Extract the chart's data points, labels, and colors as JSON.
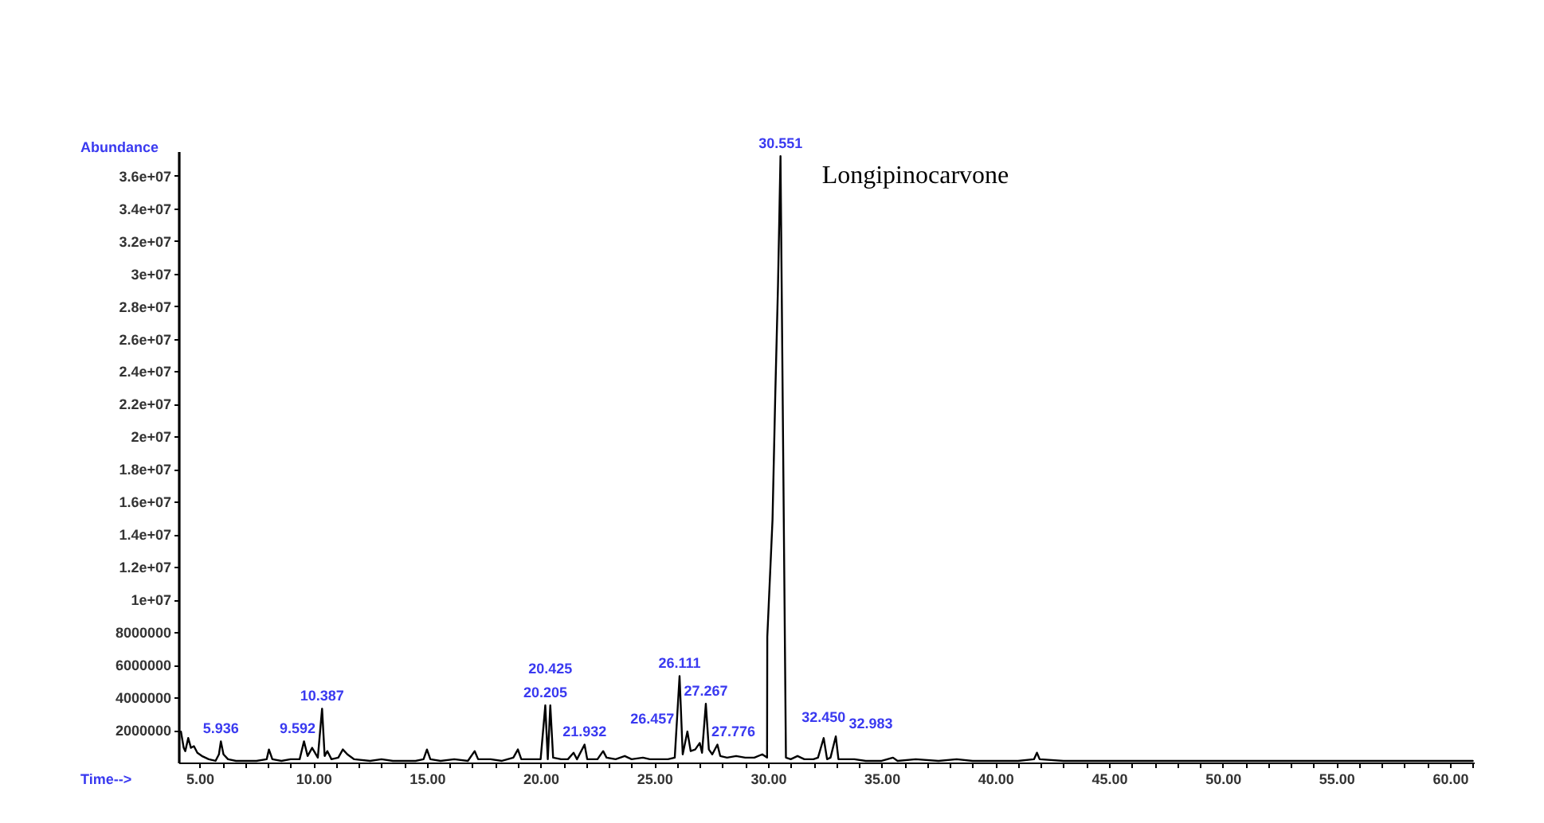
{
  "chart_data": {
    "type": "line",
    "xlabel": "Time-->",
    "ylabel": "Abundance",
    "xlim": [
      4.07,
      61.05
    ],
    "ylim": [
      0,
      37500000
    ],
    "xticks": [
      {
        "value": 5,
        "label": "5.00"
      },
      {
        "value": 6,
        "label": null
      },
      {
        "value": 7,
        "label": null
      },
      {
        "value": 8,
        "label": null
      },
      {
        "value": 9,
        "label": null
      },
      {
        "value": 10,
        "label": "10.00"
      },
      {
        "value": 11,
        "label": null
      },
      {
        "value": 12,
        "label": null
      },
      {
        "value": 13,
        "label": null
      },
      {
        "value": 14,
        "label": null
      },
      {
        "value": 15,
        "label": "15.00"
      },
      {
        "value": 16,
        "label": null
      },
      {
        "value": 17,
        "label": null
      },
      {
        "value": 18,
        "label": null
      },
      {
        "value": 19,
        "label": null
      },
      {
        "value": 20,
        "label": "20.00"
      },
      {
        "value": 21,
        "label": null
      },
      {
        "value": 22,
        "label": null
      },
      {
        "value": 23,
        "label": null
      },
      {
        "value": 24,
        "label": null
      },
      {
        "value": 25,
        "label": "25.00"
      },
      {
        "value": 26,
        "label": null
      },
      {
        "value": 27,
        "label": null
      },
      {
        "value": 28,
        "label": null
      },
      {
        "value": 29,
        "label": null
      },
      {
        "value": 30,
        "label": "30.00"
      },
      {
        "value": 31,
        "label": null
      },
      {
        "value": 32,
        "label": null
      },
      {
        "value": 33,
        "label": null
      },
      {
        "value": 34,
        "label": null
      },
      {
        "value": 35,
        "label": "35.00"
      },
      {
        "value": 36,
        "label": null
      },
      {
        "value": 37,
        "label": null
      },
      {
        "value": 38,
        "label": null
      },
      {
        "value": 39,
        "label": null
      },
      {
        "value": 40,
        "label": "40.00"
      },
      {
        "value": 41,
        "label": null
      },
      {
        "value": 42,
        "label": null
      },
      {
        "value": 43,
        "label": null
      },
      {
        "value": 44,
        "label": null
      },
      {
        "value": 45,
        "label": "45.00"
      },
      {
        "value": 46,
        "label": null
      },
      {
        "value": 47,
        "label": null
      },
      {
        "value": 48,
        "label": null
      },
      {
        "value": 49,
        "label": null
      },
      {
        "value": 50,
        "label": "50.00"
      },
      {
        "value": 51,
        "label": null
      },
      {
        "value": 52,
        "label": null
      },
      {
        "value": 53,
        "label": null
      },
      {
        "value": 54,
        "label": null
      },
      {
        "value": 55,
        "label": "55.00"
      },
      {
        "value": 56,
        "label": null
      },
      {
        "value": 57,
        "label": null
      },
      {
        "value": 58,
        "label": null
      },
      {
        "value": 59,
        "label": null
      },
      {
        "value": 60,
        "label": "60.00"
      },
      {
        "value": 61,
        "label": null
      }
    ],
    "yticks": [
      2000000,
      4000000,
      6000000,
      8000000,
      {
        "value": 10000000,
        "label": "1e+07"
      },
      {
        "value": 12000000,
        "label": "1.2e+07"
      },
      {
        "value": 14000000,
        "label": "1.4e+07"
      },
      {
        "value": 16000000,
        "label": "1.6e+07"
      },
      {
        "value": 18000000,
        "label": "1.8e+07"
      },
      {
        "value": 20000000,
        "label": "2e+07"
      },
      {
        "value": 22000000,
        "label": "2.2e+07"
      },
      {
        "value": 24000000,
        "label": "2.4e+07"
      },
      {
        "value": 26000000,
        "label": "2.6e+07"
      },
      {
        "value": 28000000,
        "label": "2.8e+07"
      },
      {
        "value": 30000000,
        "label": "3e+07"
      },
      {
        "value": 32000000,
        "label": "3.2e+07"
      },
      {
        "value": 34000000,
        "label": "3.4e+07"
      },
      {
        "value": 36000000,
        "label": "3.6e+07"
      }
    ],
    "grid": false,
    "x": [
      4.18,
      4.3,
      4.37,
      4.5,
      4.62,
      4.75,
      4.9,
      5.1,
      5.4,
      5.7,
      5.85,
      5.936,
      6.05,
      6.25,
      6.6,
      7.0,
      7.5,
      7.95,
      8.05,
      8.2,
      8.6,
      9.0,
      9.4,
      9.592,
      9.75,
      9.95,
      10.2,
      10.387,
      10.5,
      10.62,
      10.8,
      11.1,
      11.3,
      11.5,
      11.8,
      12.5,
      13.0,
      13.5,
      14.0,
      14.5,
      14.85,
      15.0,
      15.15,
      15.6,
      16.2,
      16.8,
      17.1,
      17.25,
      17.8,
      18.3,
      18.8,
      19.0,
      19.15,
      19.6,
      20.0,
      20.205,
      20.315,
      20.425,
      20.55,
      20.9,
      21.2,
      21.45,
      21.6,
      21.932,
      22.05,
      22.5,
      22.75,
      22.9,
      23.3,
      23.7,
      24.0,
      24.5,
      24.8,
      25.2,
      25.6,
      25.9,
      26.111,
      26.25,
      26.457,
      26.6,
      26.8,
      27.0,
      27.1,
      27.267,
      27.4,
      27.55,
      27.776,
      27.9,
      28.2,
      28.6,
      29.0,
      29.4,
      29.75,
      29.96,
      29.97,
      30.2,
      30.32,
      30.44,
      30.551,
      30.79,
      31.0,
      31.3,
      31.6,
      32.0,
      32.2,
      32.45,
      32.6,
      32.75,
      32.983,
      33.1,
      33.3,
      33.8,
      34.3,
      35.0,
      35.5,
      35.7,
      36.5,
      37.5,
      38.3,
      39.0,
      40.0,
      41.0,
      41.7,
      41.83,
      41.95,
      43.0,
      45.0,
      47.5,
      50.0,
      52.5,
      55.0,
      57.5,
      61.0
    ],
    "series": [
      {
        "color": "#000000",
        "values": [
          1900000,
          900000,
          700000,
          1500000,
          900000,
          1000000,
          600000,
          400000,
          200000,
          100000,
          500000,
          1300000,
          500000,
          200000,
          100000,
          100000,
          100000,
          200000,
          800000,
          200000,
          100000,
          200000,
          200000,
          1300000,
          400000,
          900000,
          300000,
          3300000,
          400000,
          700000,
          200000,
          300000,
          800000,
          500000,
          200000,
          100000,
          200000,
          100000,
          100000,
          100000,
          200000,
          800000,
          200000,
          100000,
          200000,
          100000,
          700000,
          200000,
          200000,
          100000,
          300000,
          800000,
          200000,
          200000,
          200000,
          3500000,
          200000,
          3500000,
          300000,
          200000,
          200000,
          600000,
          200000,
          1100000,
          200000,
          200000,
          700000,
          300000,
          200000,
          400000,
          200000,
          300000,
          200000,
          200000,
          200000,
          300000,
          5300000,
          500000,
          1900000,
          700000,
          800000,
          1200000,
          600000,
          3600000,
          800000,
          500000,
          1100000,
          400000,
          300000,
          400000,
          300000,
          300000,
          500000,
          300000,
          7700000,
          14900000,
          22500000,
          29200000,
          37200000,
          300000,
          200000,
          400000,
          200000,
          200000,
          300000,
          1500000,
          200000,
          300000,
          1600000,
          200000,
          200000,
          200000,
          100000,
          100000,
          300000,
          100000,
          200000,
          100000,
          200000,
          100000,
          100000,
          100000,
          200000,
          600000,
          200000,
          100000,
          100000,
          100000,
          100000,
          100000,
          100000,
          100000,
          100000
        ]
      }
    ],
    "annotations": [
      {
        "text": "Longipinocarvone",
        "x": 30.551,
        "y": 37200000
      },
      {
        "text": "5.936",
        "x": 5.936,
        "y": 1300000
      },
      {
        "text": "9.592",
        "x": 9.592,
        "y": 1300000
      },
      {
        "text": "10.387",
        "x": 10.387,
        "y": 3300000
      },
      {
        "text": "20.205",
        "x": 20.205,
        "y": 3500000
      },
      {
        "text": "20.425",
        "x": 20.425,
        "y": 3500000
      },
      {
        "text": "21.932",
        "x": 21.932,
        "y": 1100000
      },
      {
        "text": "26.111",
        "x": 26.111,
        "y": 5300000
      },
      {
        "text": "26.457",
        "x": 26.457,
        "y": 1900000
      },
      {
        "text": "27.267",
        "x": 27.267,
        "y": 3600000
      },
      {
        "text": "27.776",
        "x": 27.776,
        "y": 1100000
      },
      {
        "text": "30.551",
        "x": 30.551,
        "y": 37200000
      },
      {
        "text": "32.450",
        "x": 32.45,
        "y": 1500000
      },
      {
        "text": "32.983",
        "x": 32.983,
        "y": 1600000
      }
    ]
  }
}
